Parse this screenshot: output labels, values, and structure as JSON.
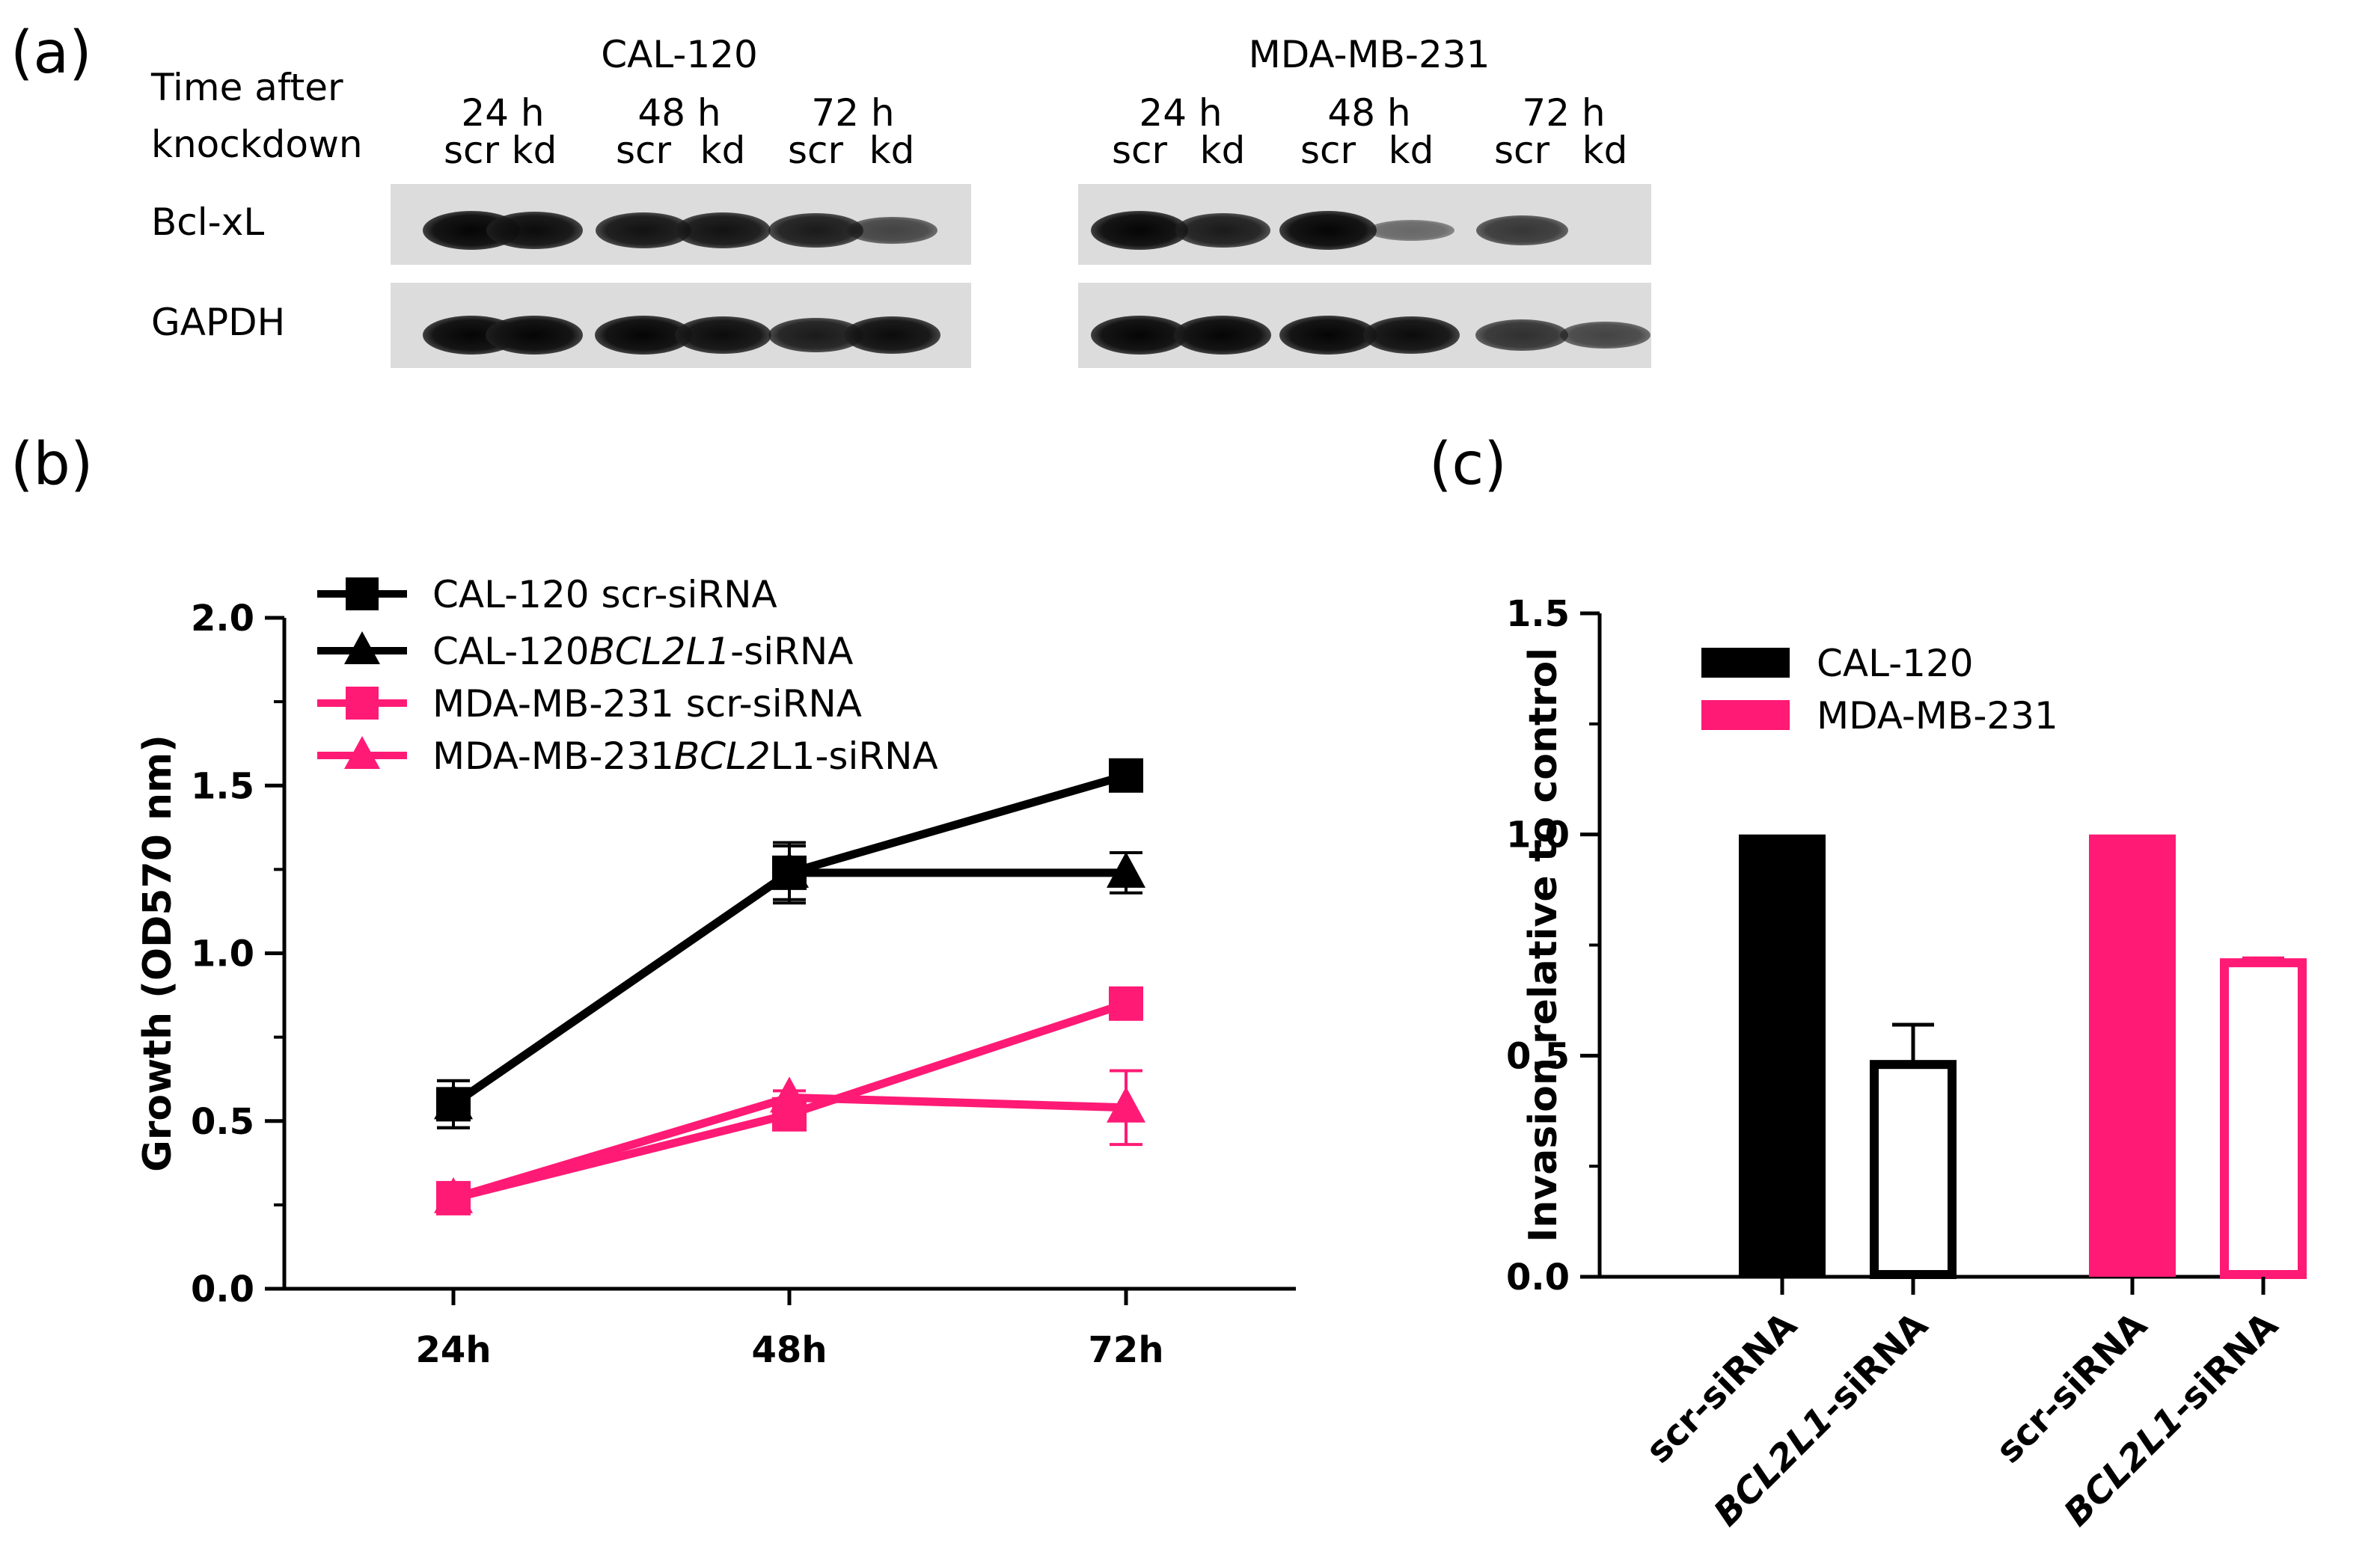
{
  "panel_labels": {
    "a": "(a)",
    "b": "(b)",
    "c": "(c)"
  },
  "blot": {
    "row_header_line1": "Time after",
    "row_header_line2": "knockdown",
    "row_labels": [
      "Bcl-xL",
      "GAPDH"
    ],
    "groups": [
      {
        "cell_line": "CAL-120",
        "timepoints": [
          "24 h",
          "48 h",
          "72 h"
        ],
        "lanes": [
          "scr",
          "kd",
          "scr",
          "kd",
          "scr",
          "kd"
        ],
        "bclxl_intensity": [
          1.0,
          0.95,
          0.9,
          0.9,
          0.85,
          0.55
        ],
        "gapdh_intensity": [
          1.0,
          1.0,
          1.0,
          0.95,
          0.85,
          0.95
        ]
      },
      {
        "cell_line": "MDA-MB-231",
        "timepoints": [
          "24 h",
          "48 h",
          "72 h"
        ],
        "lanes": [
          "scr",
          "kd",
          "scr",
          "kd",
          "scr",
          "kd"
        ],
        "bclxl_intensity": [
          1.0,
          0.85,
          1.0,
          0.3,
          0.65,
          0.0
        ],
        "gapdh_intensity": [
          1.0,
          1.0,
          1.0,
          0.95,
          0.7,
          0.55
        ]
      }
    ]
  },
  "colors": {
    "black": "#000000",
    "pink": "#ff1a75"
  },
  "chart_data": [
    {
      "type": "line",
      "panel": "b",
      "ylabel": "Growth (OD570 nm)",
      "xlabel": "",
      "categories": [
        "24h",
        "48h",
        "72h"
      ],
      "ylim": [
        0,
        2.0
      ],
      "yticks": [
        "0.0",
        "0.5",
        "1.0",
        "1.5",
        "2.0"
      ],
      "legend_position": "top-left",
      "series": [
        {
          "name_parts": [
            "CAL-120 scr-siRNA"
          ],
          "marker": "square",
          "color": "#000000",
          "values": [
            0.55,
            1.24,
            1.53
          ],
          "errors": [
            0.07,
            0.09,
            0.03
          ]
        },
        {
          "name_parts": [
            "CAL-120",
            "BCL2L1",
            "-siRNA"
          ],
          "marker": "triangle",
          "color": "#000000",
          "values": [
            0.55,
            1.24,
            1.24
          ],
          "errors": [
            0.07,
            0.08,
            0.06
          ]
        },
        {
          "name_parts": [
            "MDA-MB-231 scr-siRNA"
          ],
          "marker": "square",
          "color": "#ff1a75",
          "values": [
            0.27,
            0.52,
            0.85
          ],
          "errors": [
            0.03,
            0.03,
            0.02
          ]
        },
        {
          "name_parts": [
            "MDA-MB-231",
            "BCL2",
            "L1-siRNA"
          ],
          "marker": "triangle",
          "color": "#ff1a75",
          "values": [
            0.27,
            0.57,
            0.54
          ],
          "errors": [
            0.03,
            0.02,
            0.11
          ]
        }
      ]
    },
    {
      "type": "bar",
      "panel": "c",
      "ylabel": "Invasion relative to control",
      "xlabel": "",
      "categories": [
        [
          "scr-siRNA"
        ],
        [
          "BCL2L1",
          "-siRNA"
        ],
        [
          "scr-siRNA"
        ],
        [
          "BCL2L1",
          "-siRNA"
        ]
      ],
      "ylim": [
        0,
        1.5
      ],
      "yticks": [
        "0.0",
        "0.5",
        "1.0",
        "1.5"
      ],
      "legend_position": "top-left",
      "legend": [
        {
          "name": "CAL-120",
          "color": "#000000"
        },
        {
          "name": "MDA-MB-231",
          "color": "#ff1a75"
        }
      ],
      "bars": [
        {
          "value": 1.0,
          "error": 0.0,
          "color": "#000000",
          "filled": true
        },
        {
          "value": 0.48,
          "error": 0.09,
          "color": "#000000",
          "filled": false
        },
        {
          "value": 1.0,
          "error": 0.0,
          "color": "#ff1a75",
          "filled": true
        },
        {
          "value": 0.71,
          "error": 0.01,
          "color": "#ff1a75",
          "filled": false
        }
      ]
    }
  ]
}
